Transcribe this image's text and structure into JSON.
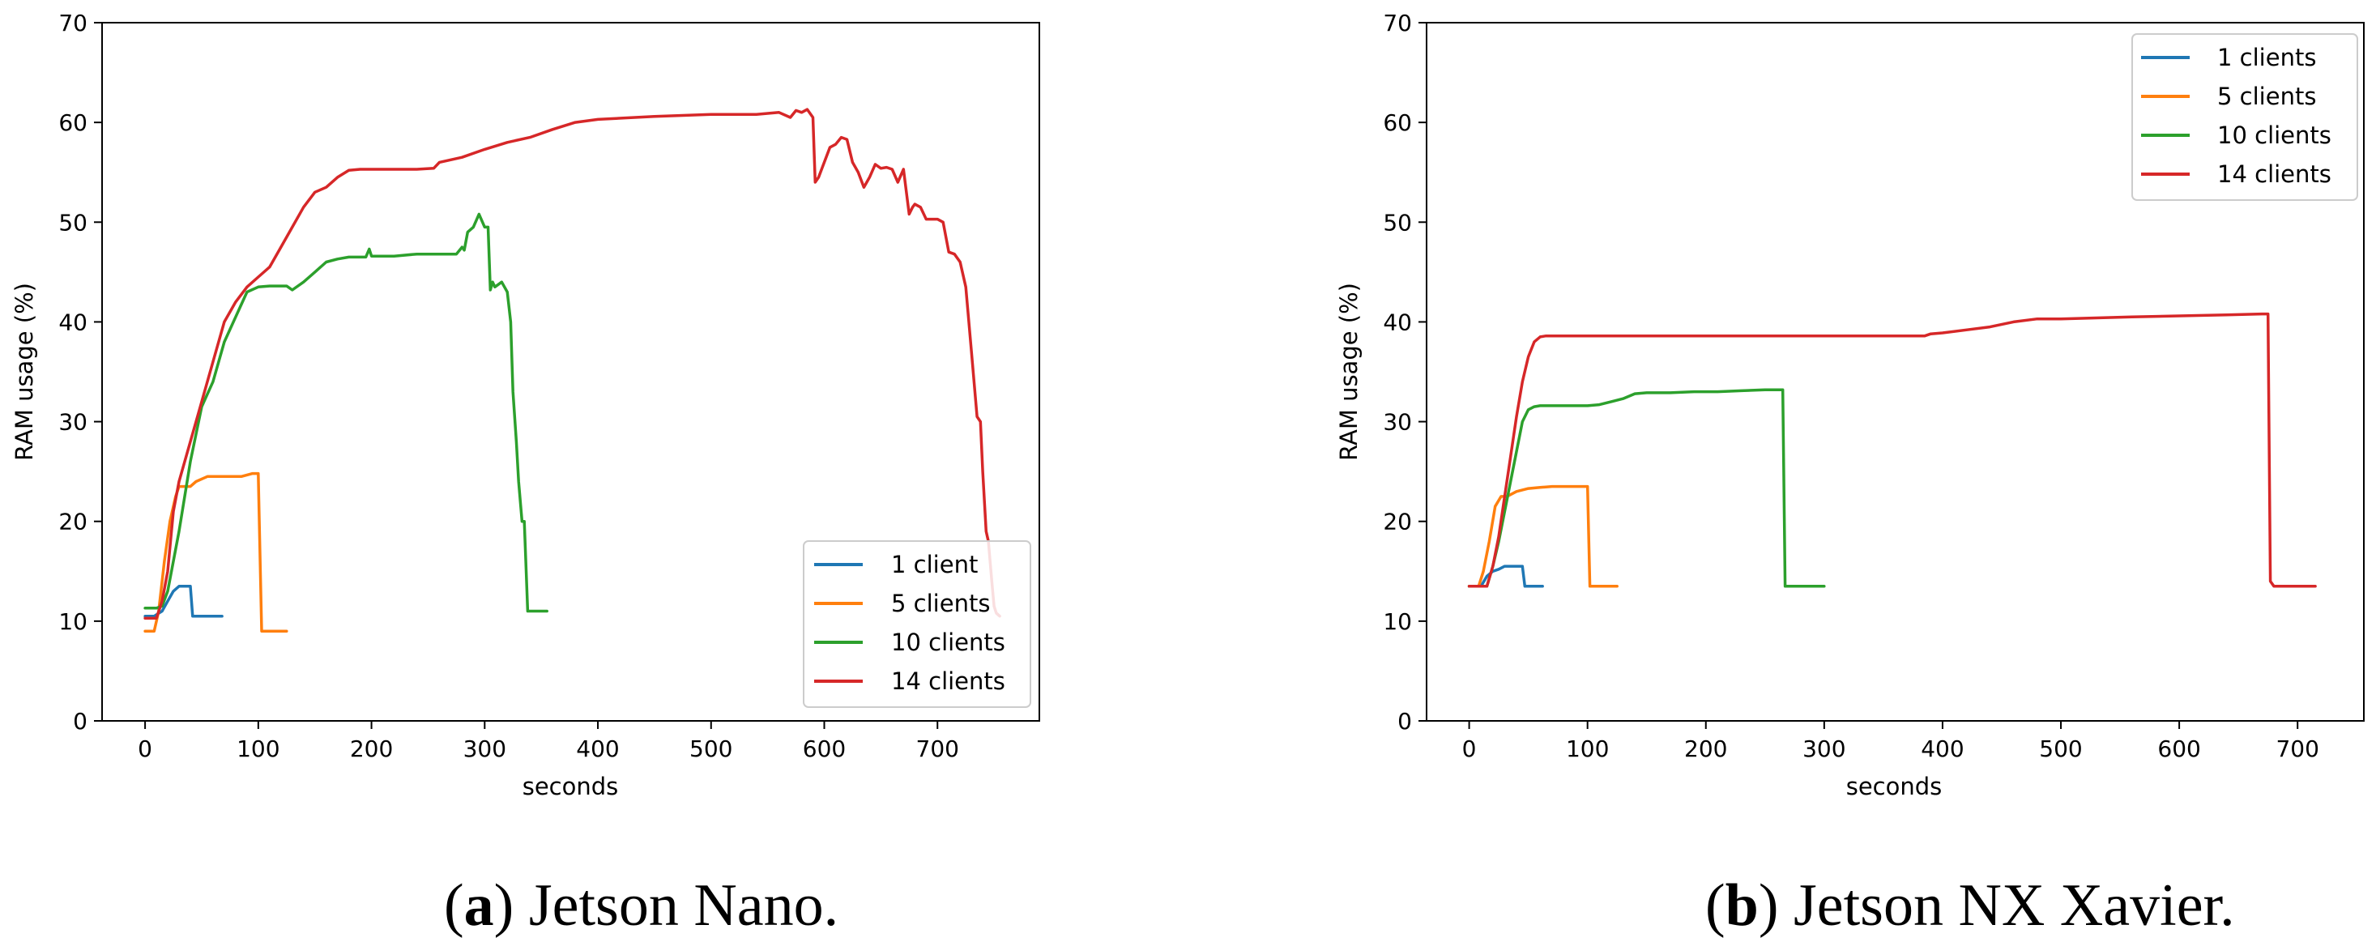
{
  "chart_data": [
    {
      "type": "line",
      "caption_letter": "a",
      "caption_text": " Jetson Nano.",
      "xlabel": "seconds",
      "ylabel": "RAM usage (%)",
      "xlim": [
        -38,
        790
      ],
      "ylim": [
        0,
        70
      ],
      "xticks": [
        0,
        100,
        200,
        300,
        400,
        500,
        600,
        700
      ],
      "yticks": [
        0,
        10,
        20,
        30,
        40,
        50,
        60,
        70
      ],
      "legend_position": "bottom-right",
      "series": [
        {
          "name": "1 client",
          "color": "#1f77b4",
          "x": [
            0,
            8,
            15,
            20,
            25,
            30,
            35,
            40,
            42,
            45,
            55,
            68
          ],
          "y": [
            10.5,
            10.5,
            11.0,
            12.0,
            13.0,
            13.5,
            13.5,
            13.5,
            10.5,
            10.5,
            10.5,
            10.5
          ]
        },
        {
          "name": "5 clients",
          "color": "#ff7f0e",
          "x": [
            0,
            8,
            12,
            17,
            22,
            27,
            30,
            35,
            40,
            45,
            55,
            65,
            75,
            85,
            95,
            100,
            103,
            106,
            110,
            125
          ],
          "y": [
            9.0,
            9.0,
            11.0,
            16.0,
            20.0,
            22.5,
            23.5,
            23.5,
            23.5,
            24.0,
            24.5,
            24.5,
            24.5,
            24.5,
            24.8,
            24.8,
            9.0,
            9.0,
            9.0,
            9.0
          ]
        },
        {
          "name": "10 clients",
          "color": "#2ca02c",
          "x": [
            0,
            10,
            15,
            20,
            30,
            40,
            50,
            60,
            70,
            80,
            90,
            100,
            110,
            125,
            130,
            140,
            150,
            160,
            170,
            180,
            195,
            198,
            200,
            220,
            240,
            260,
            275,
            280,
            282,
            285,
            290,
            295,
            300,
            303,
            305,
            307,
            309,
            315,
            320,
            323,
            325,
            328,
            330,
            333,
            335,
            338,
            340,
            345,
            355
          ],
          "y": [
            11.3,
            11.3,
            11.5,
            13.0,
            19.0,
            26.0,
            31.5,
            34.0,
            38.0,
            40.5,
            43.0,
            43.5,
            43.6,
            43.6,
            43.2,
            44.0,
            45.0,
            46.0,
            46.3,
            46.5,
            46.5,
            47.3,
            46.6,
            46.6,
            46.8,
            46.8,
            46.8,
            47.5,
            47.2,
            49.0,
            49.5,
            50.8,
            49.5,
            49.5,
            43.2,
            44.0,
            43.5,
            44.0,
            43.0,
            40.0,
            33.0,
            28.0,
            24.0,
            20.0,
            20.0,
            11.0,
            11.0,
            11.0,
            11.0
          ]
        },
        {
          "name": "14 clients",
          "color": "#d62728",
          "x": [
            0,
            10,
            15,
            20,
            25,
            30,
            40,
            50,
            60,
            70,
            80,
            90,
            100,
            110,
            120,
            130,
            140,
            150,
            160,
            170,
            180,
            190,
            200,
            220,
            240,
            255,
            260,
            280,
            300,
            320,
            340,
            360,
            380,
            400,
            450,
            500,
            540,
            560,
            570,
            575,
            580,
            585,
            590,
            592,
            595,
            600,
            605,
            610,
            615,
            620,
            625,
            630,
            635,
            640,
            645,
            650,
            655,
            660,
            665,
            670,
            675,
            678,
            680,
            685,
            690,
            695,
            700,
            705,
            710,
            715,
            720,
            725,
            730,
            735,
            738,
            740,
            743,
            745,
            748,
            750,
            752,
            755
          ],
          "y": [
            10.3,
            10.3,
            12.0,
            15.0,
            21.0,
            24.0,
            28.0,
            32.0,
            36.0,
            40.0,
            42.0,
            43.5,
            44.5,
            45.5,
            47.5,
            49.5,
            51.5,
            53.0,
            53.5,
            54.5,
            55.2,
            55.3,
            55.3,
            55.3,
            55.3,
            55.4,
            56.0,
            56.5,
            57.3,
            58.0,
            58.5,
            59.3,
            60.0,
            60.3,
            60.6,
            60.8,
            60.8,
            61.0,
            60.5,
            61.2,
            61.0,
            61.3,
            60.5,
            54.0,
            54.5,
            56.0,
            57.5,
            57.8,
            58.5,
            58.3,
            56.0,
            55.0,
            53.5,
            54.5,
            55.8,
            55.4,
            55.5,
            55.3,
            54.0,
            55.3,
            50.8,
            51.5,
            51.8,
            51.5,
            50.3,
            50.3,
            50.3,
            50.0,
            47.0,
            46.8,
            46.0,
            43.5,
            37.0,
            30.5,
            30.0,
            25.0,
            19.0,
            18.0,
            14.0,
            11.5,
            10.8,
            10.5
          ]
        }
      ]
    },
    {
      "type": "line",
      "caption_letter": "b",
      "caption_text": " Jetson NX Xavier.",
      "xlabel": "seconds",
      "ylabel": "RAM usage (%)",
      "xlim": [
        -36,
        756
      ],
      "ylim": [
        0,
        70
      ],
      "xticks": [
        0,
        100,
        200,
        300,
        400,
        500,
        600,
        700
      ],
      "yticks": [
        0,
        10,
        20,
        30,
        40,
        50,
        60,
        70
      ],
      "legend_position": "top-right",
      "series": [
        {
          "name": "1 clients",
          "color": "#1f77b4",
          "x": [
            0,
            10,
            15,
            20,
            25,
            30,
            35,
            40,
            45,
            47,
            50,
            55,
            62
          ],
          "y": [
            13.5,
            13.5,
            14.5,
            15.0,
            15.2,
            15.5,
            15.5,
            15.5,
            15.5,
            13.5,
            13.5,
            13.5,
            13.5
          ]
        },
        {
          "name": "5 clients",
          "color": "#ff7f0e",
          "x": [
            0,
            8,
            12,
            17,
            22,
            27,
            32,
            40,
            50,
            60,
            70,
            80,
            90,
            100,
            102,
            105,
            112,
            125
          ],
          "y": [
            13.5,
            13.5,
            15.0,
            18.0,
            21.5,
            22.5,
            22.5,
            23.0,
            23.3,
            23.4,
            23.5,
            23.5,
            23.5,
            23.5,
            13.5,
            13.5,
            13.5,
            13.5
          ]
        },
        {
          "name": "10 clients",
          "color": "#2ca02c",
          "x": [
            0,
            15,
            20,
            25,
            30,
            35,
            40,
            45,
            50,
            55,
            60,
            80,
            100,
            110,
            120,
            130,
            140,
            150,
            170,
            190,
            210,
            230,
            250,
            265,
            267,
            270,
            280,
            300
          ],
          "y": [
            13.5,
            13.5,
            15.5,
            18.0,
            21.0,
            24.0,
            27.0,
            30.0,
            31.2,
            31.5,
            31.6,
            31.6,
            31.6,
            31.7,
            32.0,
            32.3,
            32.8,
            32.9,
            32.9,
            33.0,
            33.0,
            33.1,
            33.2,
            33.2,
            13.5,
            13.5,
            13.5,
            13.5
          ]
        },
        {
          "name": "14 clients",
          "color": "#d62728",
          "x": [
            0,
            15,
            20,
            25,
            30,
            35,
            40,
            45,
            50,
            55,
            60,
            65,
            80,
            100,
            150,
            200,
            250,
            300,
            350,
            385,
            390,
            400,
            420,
            440,
            460,
            480,
            500,
            530,
            560,
            600,
            640,
            670,
            675,
            677,
            680,
            690,
            700,
            715
          ],
          "y": [
            13.5,
            13.5,
            15.5,
            18.5,
            22.5,
            26.5,
            30.5,
            34.0,
            36.5,
            38.0,
            38.5,
            38.6,
            38.6,
            38.6,
            38.6,
            38.6,
            38.6,
            38.6,
            38.6,
            38.6,
            38.8,
            38.9,
            39.2,
            39.5,
            40.0,
            40.3,
            40.3,
            40.4,
            40.5,
            40.6,
            40.7,
            40.8,
            40.8,
            14.0,
            13.5,
            13.5,
            13.5,
            13.5
          ]
        }
      ]
    }
  ]
}
